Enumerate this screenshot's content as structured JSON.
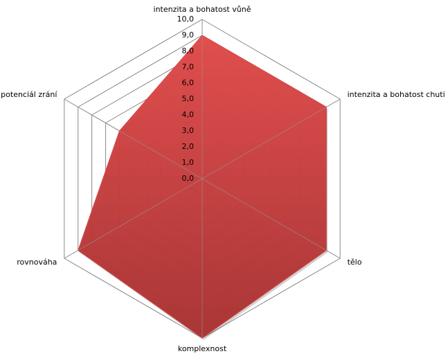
{
  "chart_data": {
    "type": "radar",
    "categories": [
      "intenzita a bohatost vůně",
      "intenzita a bohatost chuti",
      "tělo",
      "komplexnost",
      "rovnováha",
      "potenciál zrání"
    ],
    "values": [
      9,
      9,
      9,
      10,
      9,
      6
    ],
    "color": "#d84444",
    "ylim": [
      0,
      10
    ],
    "yticks": [
      {
        "value": 0,
        "label": "0,0"
      },
      {
        "value": 1,
        "label": "1,0"
      },
      {
        "value": 2,
        "label": "2,0"
      },
      {
        "value": 3,
        "label": "3,0"
      },
      {
        "value": 4,
        "label": "4,0"
      },
      {
        "value": 5,
        "label": "5,0"
      },
      {
        "value": 6,
        "label": "6,0"
      },
      {
        "value": 7,
        "label": "7,0"
      },
      {
        "value": 8,
        "label": "8,0"
      },
      {
        "value": 9,
        "label": "9,0"
      },
      {
        "value": 10,
        "label": "10,0"
      }
    ],
    "grid": true
  }
}
